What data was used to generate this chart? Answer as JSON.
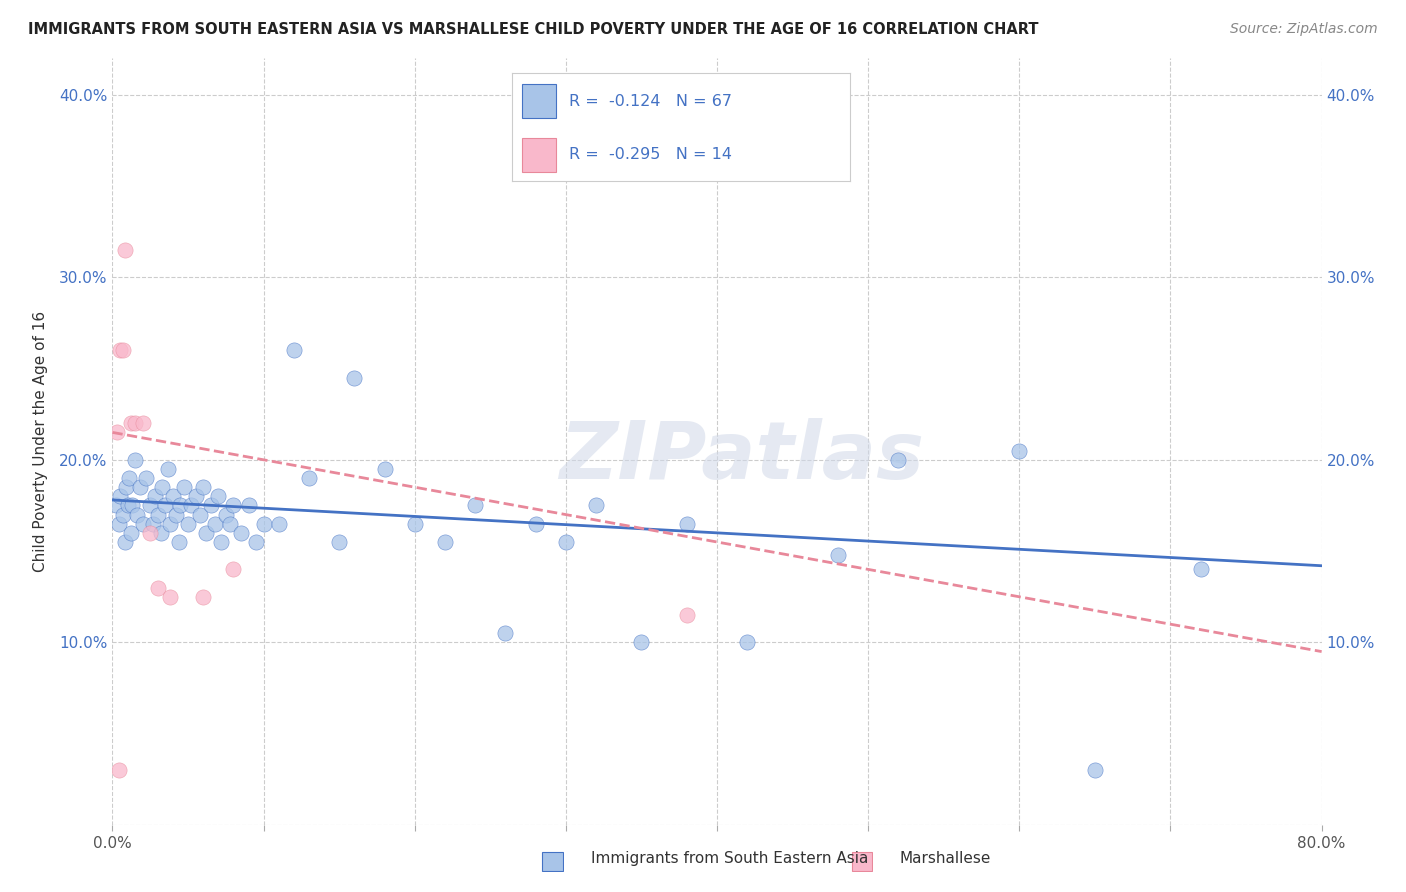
{
  "title": "IMMIGRANTS FROM SOUTH EASTERN ASIA VS MARSHALLESE CHILD POVERTY UNDER THE AGE OF 16 CORRELATION CHART",
  "source": "Source: ZipAtlas.com",
  "ylabel": "Child Poverty Under the Age of 16",
  "legend_labels": [
    "Immigrants from South Eastern Asia",
    "Marshallese"
  ],
  "blue_R": "-0.124",
  "blue_N": "67",
  "pink_R": "-0.295",
  "pink_N": "14",
  "blue_scatter_color": "#a8c4e8",
  "pink_scatter_color": "#f9b8cb",
  "blue_line_color": "#4472c4",
  "pink_line_color": "#e8889a",
  "watermark": "ZIPatlas",
  "xlim": [
    0.0,
    0.8
  ],
  "ylim": [
    0.0,
    0.42
  ],
  "x_ticks": [
    0.0,
    0.1,
    0.2,
    0.3,
    0.4,
    0.5,
    0.6,
    0.7,
    0.8
  ],
  "y_ticks": [
    0.0,
    0.1,
    0.2,
    0.3,
    0.4
  ],
  "blue_scatter_x": [
    0.002,
    0.004,
    0.005,
    0.007,
    0.008,
    0.009,
    0.01,
    0.011,
    0.012,
    0.013,
    0.015,
    0.016,
    0.018,
    0.02,
    0.022,
    0.025,
    0.027,
    0.028,
    0.03,
    0.032,
    0.033,
    0.035,
    0.037,
    0.038,
    0.04,
    0.042,
    0.044,
    0.045,
    0.047,
    0.05,
    0.052,
    0.055,
    0.058,
    0.06,
    0.062,
    0.065,
    0.068,
    0.07,
    0.072,
    0.075,
    0.078,
    0.08,
    0.085,
    0.09,
    0.095,
    0.1,
    0.11,
    0.12,
    0.13,
    0.15,
    0.16,
    0.18,
    0.2,
    0.22,
    0.24,
    0.26,
    0.28,
    0.3,
    0.32,
    0.35,
    0.38,
    0.42,
    0.48,
    0.52,
    0.6,
    0.65,
    0.72
  ],
  "blue_scatter_y": [
    0.175,
    0.165,
    0.18,
    0.17,
    0.155,
    0.185,
    0.175,
    0.19,
    0.16,
    0.175,
    0.2,
    0.17,
    0.185,
    0.165,
    0.19,
    0.175,
    0.165,
    0.18,
    0.17,
    0.16,
    0.185,
    0.175,
    0.195,
    0.165,
    0.18,
    0.17,
    0.155,
    0.175,
    0.185,
    0.165,
    0.175,
    0.18,
    0.17,
    0.185,
    0.16,
    0.175,
    0.165,
    0.18,
    0.155,
    0.17,
    0.165,
    0.175,
    0.16,
    0.175,
    0.155,
    0.165,
    0.165,
    0.26,
    0.19,
    0.155,
    0.245,
    0.195,
    0.165,
    0.155,
    0.175,
    0.105,
    0.165,
    0.155,
    0.175,
    0.1,
    0.165,
    0.1,
    0.148,
    0.2,
    0.205,
    0.03,
    0.14
  ],
  "pink_scatter_x": [
    0.003,
    0.005,
    0.007,
    0.008,
    0.012,
    0.015,
    0.02,
    0.025,
    0.03,
    0.038,
    0.06,
    0.08,
    0.38,
    0.004
  ],
  "pink_scatter_y": [
    0.215,
    0.26,
    0.26,
    0.315,
    0.22,
    0.22,
    0.22,
    0.16,
    0.13,
    0.125,
    0.125,
    0.14,
    0.115,
    0.03
  ],
  "blue_trend_x": [
    0.0,
    0.8
  ],
  "blue_trend_y": [
    0.178,
    0.142
  ],
  "pink_trend_x": [
    0.0,
    0.8
  ],
  "pink_trend_y": [
    0.215,
    0.095
  ]
}
